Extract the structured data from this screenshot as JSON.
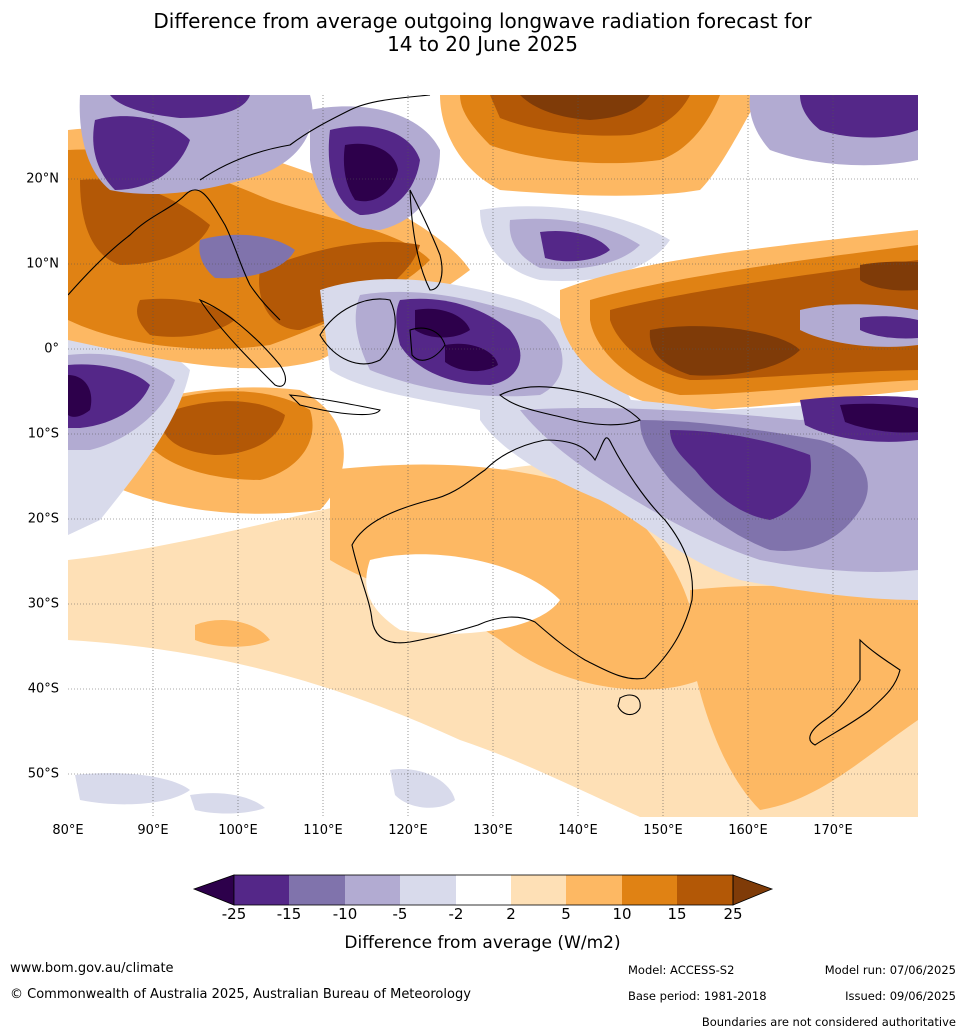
{
  "title": {
    "line1": "Difference from average outgoing longwave radiation forecast for",
    "line2": "14 to 20 June 2025"
  },
  "map": {
    "lat_labels": [
      "20°N",
      "10°N",
      "0°",
      "10°S",
      "20°S",
      "30°S",
      "40°S",
      "50°S"
    ],
    "lon_labels": [
      "80°E",
      "90°E",
      "100°E",
      "110°E",
      "120°E",
      "130°E",
      "140°E",
      "150°E",
      "160°E",
      "170°E"
    ]
  },
  "colorbar": {
    "ticks": [
      "-25",
      "-15",
      "-10",
      "-5",
      "-2",
      "2",
      "5",
      "10",
      "15",
      "25"
    ],
    "colors": {
      "below_min": "#2d004b",
      "n25_15": "#542788",
      "n15_10": "#8073ac",
      "n10_5": "#b2abd2",
      "n5_2": "#d8daeb",
      "n2_2": "#ffffff",
      "p2_5": "#fee0b6",
      "p5_10": "#fdb863",
      "p10_15": "#e08214",
      "p15_25": "#b35806",
      "above_max": "#7f3b08"
    },
    "label": "Difference from average (W/m2)"
  },
  "footer": {
    "website": "www.bom.gov.au/climate",
    "copyright": "© Commonwealth of Australia 2025, Australian Bureau of Meteorology",
    "model": "Model: ACCESS-S2",
    "base_period": "Base period: 1981-2018",
    "model_run": "Model run: 07/06/2025",
    "issued": "Issued: 09/06/2025",
    "disclaimer": "Boundaries are not considered authoritative"
  }
}
